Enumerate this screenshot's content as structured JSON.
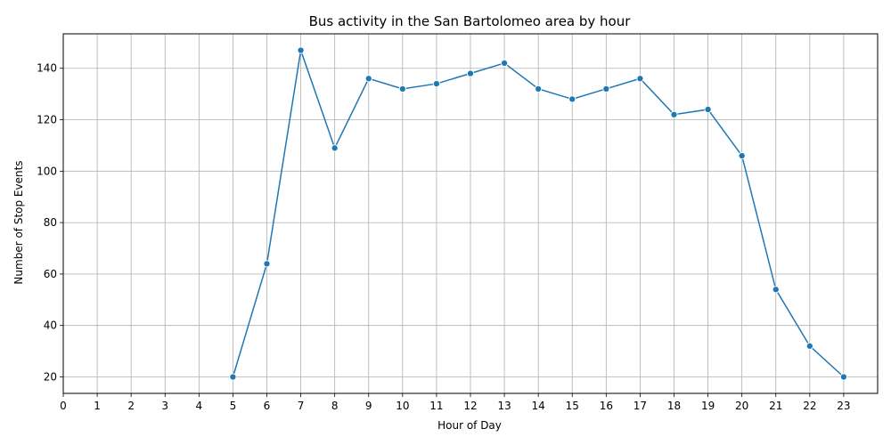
{
  "chart_data": {
    "type": "line",
    "title": "Bus activity in the San Bartolomeo area by hour",
    "xlabel": "Hour of Day",
    "ylabel": "Number of Stop Events",
    "x_ticks": [
      "0",
      "1",
      "2",
      "3",
      "4",
      "5",
      "6",
      "7",
      "8",
      "9",
      "10",
      "11",
      "12",
      "13",
      "14",
      "15",
      "16",
      "17",
      "18",
      "19",
      "20",
      "21",
      "22",
      "23"
    ],
    "y_ticks": [
      "20",
      "40",
      "60",
      "80",
      "100",
      "120",
      "140"
    ],
    "xlim": [
      0,
      24
    ],
    "ylim": [
      13.6,
      153.4
    ],
    "grid": true,
    "line_color": "#1f77b4",
    "series": [
      {
        "x": [
          5,
          6,
          7,
          8,
          9,
          10,
          11,
          12,
          13,
          14,
          15,
          16,
          17,
          18,
          19,
          20,
          21,
          22,
          23
        ],
        "values": [
          20,
          64,
          147,
          109,
          136,
          132,
          134,
          138,
          142,
          132,
          128,
          132,
          136,
          122,
          124,
          106,
          54,
          32,
          20
        ]
      }
    ]
  }
}
